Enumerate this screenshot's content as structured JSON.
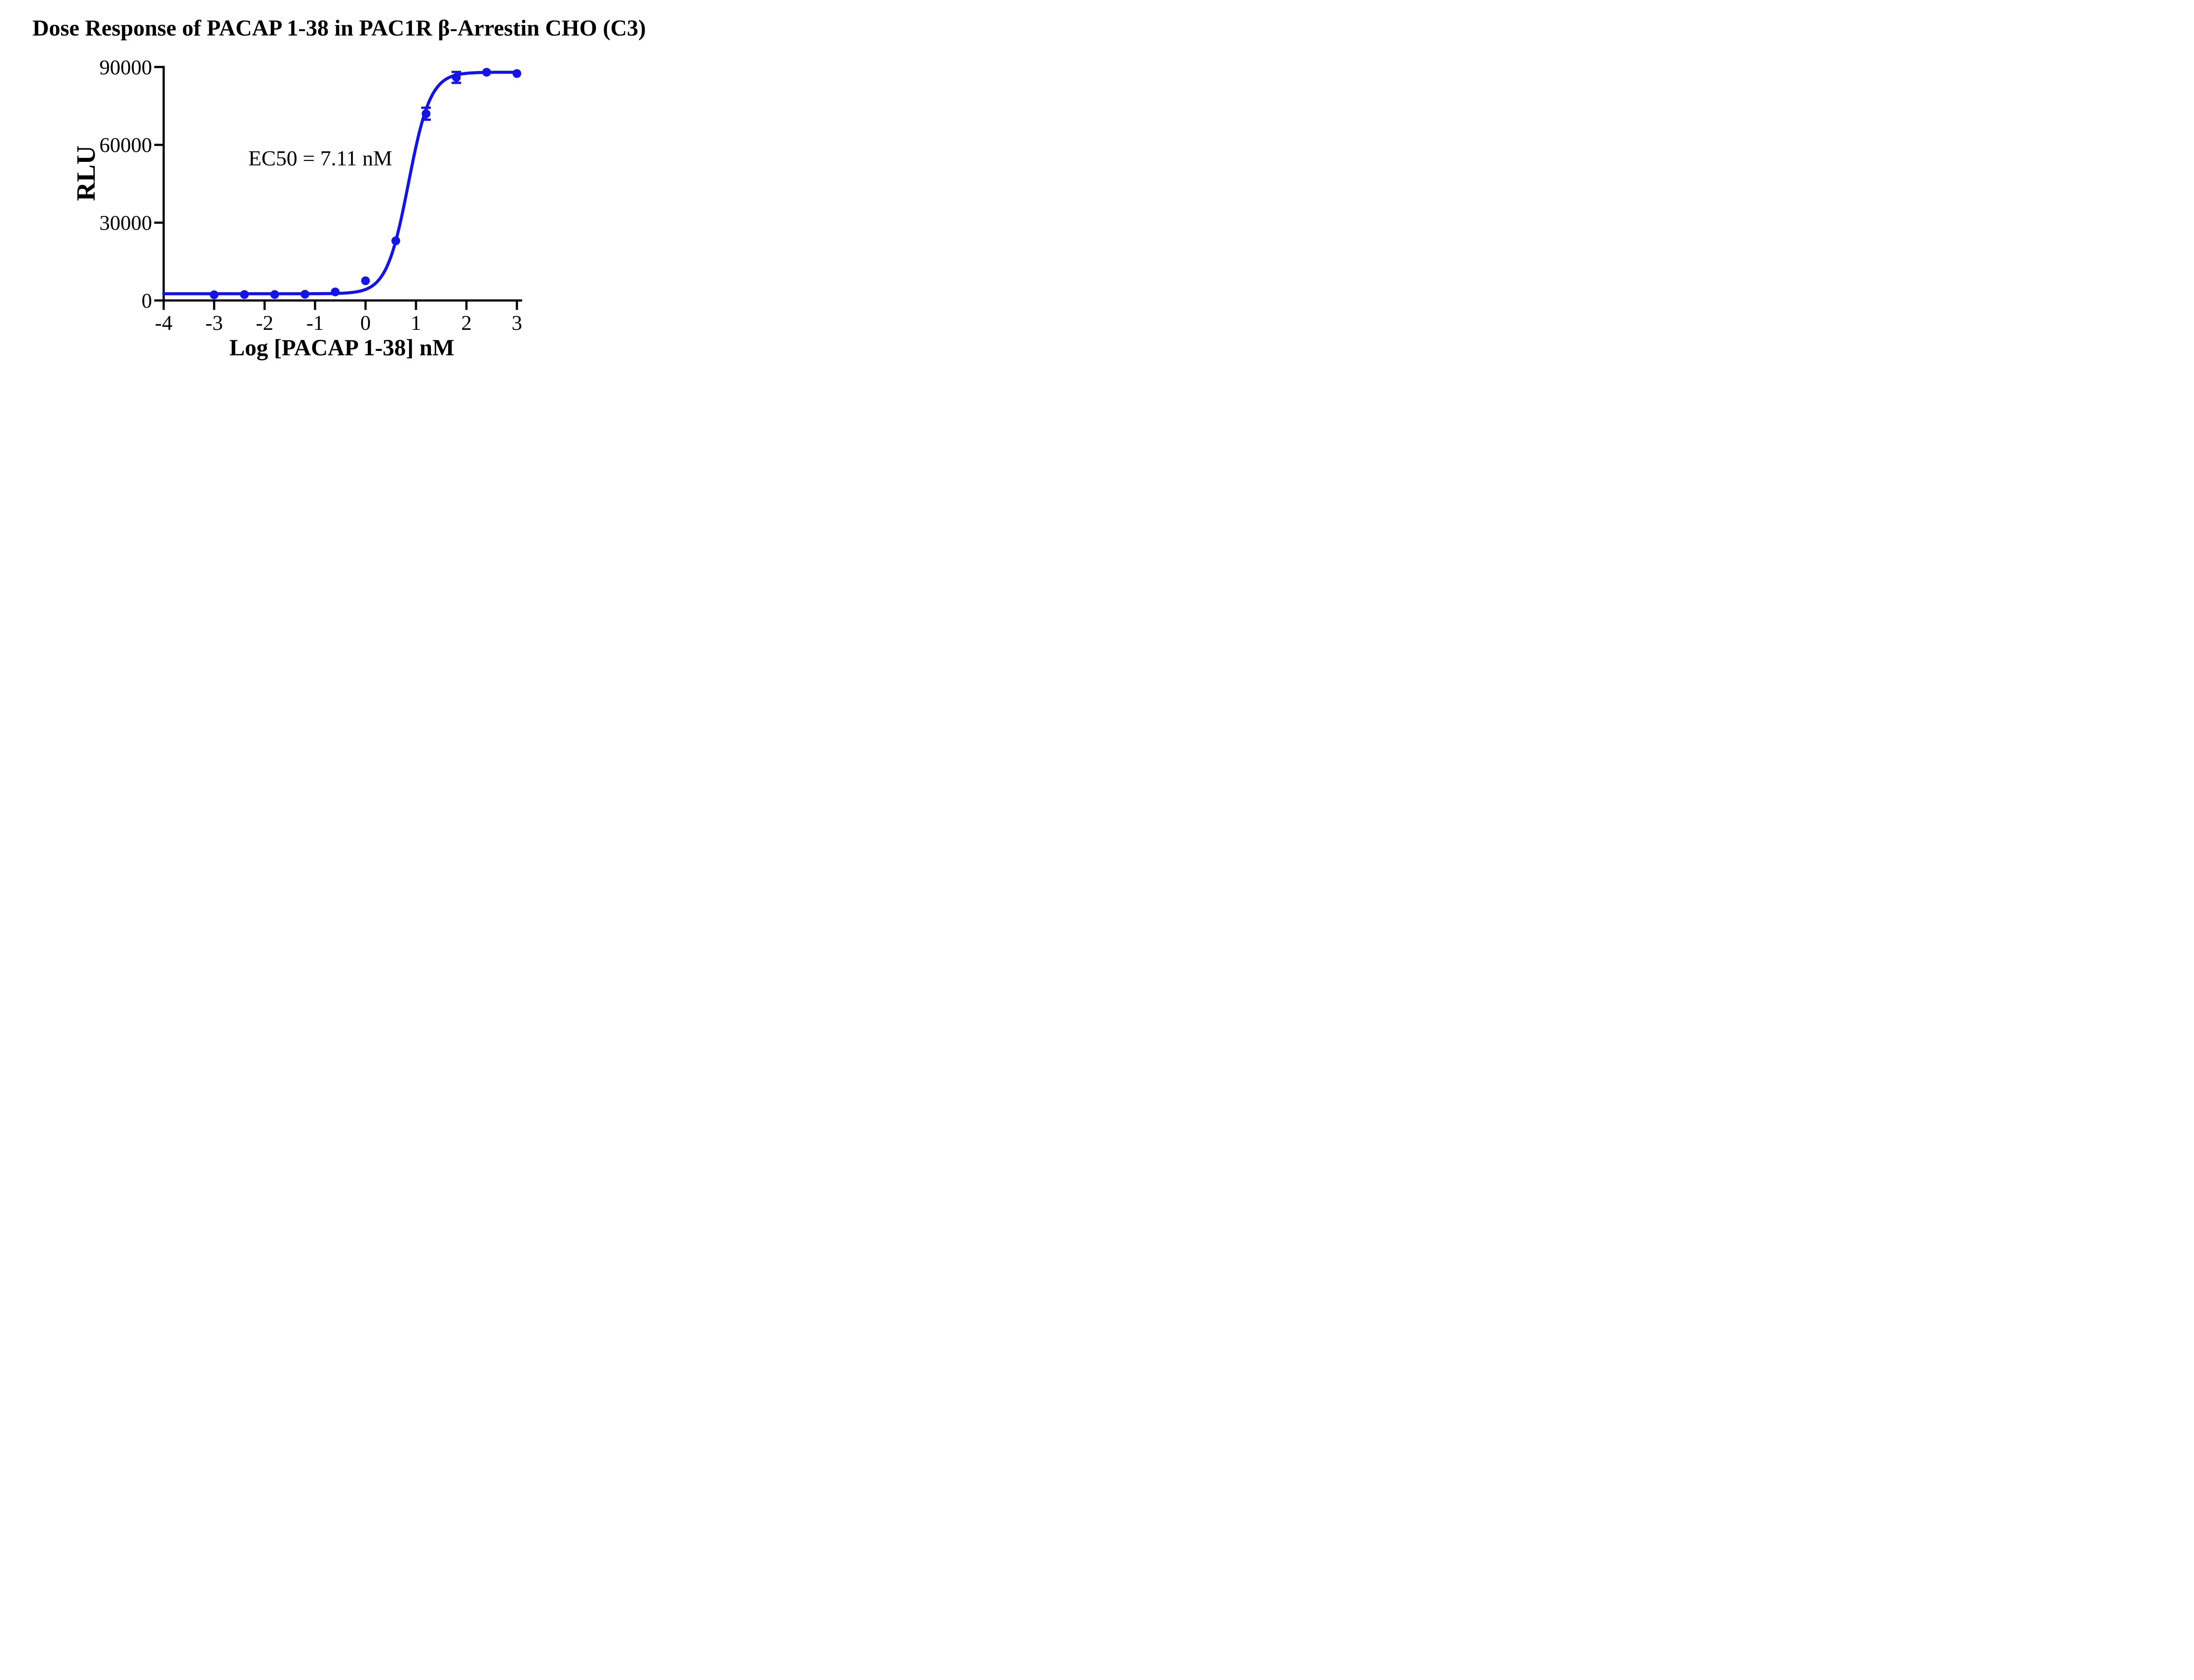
{
  "page": {
    "background": "#FFFFFF",
    "text_color": "#000000"
  },
  "chart_data": {
    "type": "scatter",
    "title": "Dose Response of PACAP 1-38 in PAC1R β-Arrestin CHO（C3）",
    "xlabel": "Log [PACAP 1-38] nM",
    "ylabel": "RLU",
    "annotation": "EC50 = 7.11 nM",
    "x_ticks": [
      -4,
      -3,
      -2,
      -1,
      0,
      1,
      2,
      3
    ],
    "x_tick_labels": [
      "-4",
      "-3",
      "-2",
      "-1",
      "0",
      "1",
      "2",
      "3"
    ],
    "y_ticks": [
      0,
      30000,
      60000,
      90000
    ],
    "y_tick_labels": [
      "0",
      "30000",
      "60000",
      "90000"
    ],
    "xlim": [
      -4,
      3.1
    ],
    "ylim": [
      0,
      90000
    ],
    "grid": false,
    "legend": false,
    "axis_color": "#000000",
    "series": [
      {
        "name": "PACAP 1-38",
        "color": "#1414E6",
        "marker": "circle",
        "x": [
          -3,
          -2.4,
          -1.8,
          -1.2,
          -0.6,
          0,
          0.6,
          1.2,
          1.8,
          2.4,
          3
        ],
        "y": [
          2200,
          2300,
          2300,
          2400,
          3300,
          7600,
          23000,
          72000,
          86000,
          88000,
          87500
        ],
        "y_err": [
          0,
          0,
          0,
          0,
          0,
          0,
          0,
          2300,
          2100,
          0,
          0
        ]
      }
    ],
    "fit": {
      "model": "4PL sigmoid",
      "bottom": 2600,
      "top": 88000,
      "logEC50": 0.852,
      "hill_slope": 2.0,
      "ec50_nM": 7.11
    }
  }
}
